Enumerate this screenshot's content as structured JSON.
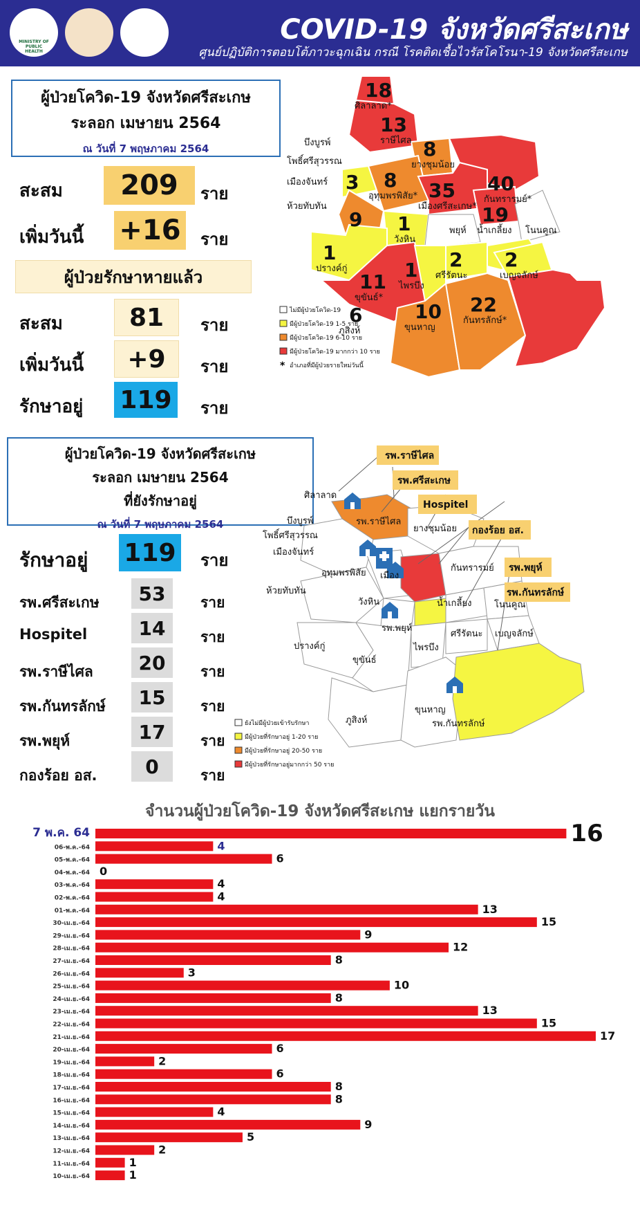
{
  "header": {
    "title": "COVID-19 จังหวัดศรีสะเกษ",
    "subtitle": "ศูนย์ปฏิบัติการตอบโต้ภาวะฉุกเฉิน กรณี โรคติดเชื้อไวรัสโคโรนา-19 จังหวัดศรีสะเกษ",
    "logos": [
      "ministry-of-public-health-logo",
      "provincial-seal-logo",
      "provincial-emblem-logo"
    ],
    "logo_text": "MINISTRY OF PUBLIC HEALTH",
    "bg_color": "#2b2d92"
  },
  "summary": {
    "box_line1": "ผู้ป่วยโควิด-19 จังหวัดศรีสะเกษ",
    "box_line2": "ระลอก เมษายน 2564",
    "box_date": "ณ วันที่ 7 พฤษภาคม 2564",
    "cumulative_label": "สะสม",
    "cumulative_value": "209",
    "new_label": "เพิ่มวันนี้",
    "new_value": "+16",
    "unit": "ราย",
    "recovered_title": "ผู้ป่วยรักษาหายแล้ว",
    "recovered_cum_label": "สะสม",
    "recovered_cum_value": "81",
    "recovered_new_label": "เพิ่มวันนี้",
    "recovered_new_value": "+9",
    "treating_label": "รักษาอยู่",
    "treating_value": "119"
  },
  "district_map": {
    "districts": [
      {
        "name": "ศิลาลาด*",
        "cases": "18"
      },
      {
        "name": "ราษีไศล",
        "cases": "13"
      },
      {
        "name": "ยางชุมน้อย",
        "cases": "8"
      },
      {
        "name": "เมืองจันทร์",
        "cases": "3"
      },
      {
        "name": "อุทุมพรพิสัย*",
        "cases": "8"
      },
      {
        "name": "เมืองศรีสะเกษ*",
        "cases": "35"
      },
      {
        "name": "กันทรารมย์*",
        "cases": "40"
      },
      {
        "name": "ห้วยทับทัน",
        "cases": "9"
      },
      {
        "name": "วังหิน",
        "cases": "1"
      },
      {
        "name": "น้ำเกลี้ยง",
        "cases": "19"
      },
      {
        "name": "ปรางค์กู่",
        "cases": "1"
      },
      {
        "name": "ขุขันธ์*",
        "cases": "11"
      },
      {
        "name": "ไพรบึง",
        "cases": "1"
      },
      {
        "name": "ศรีรัตนะ",
        "cases": "2"
      },
      {
        "name": "เบญจลักษ์",
        "cases": "2"
      },
      {
        "name": "ขุนหาญ",
        "cases": "10"
      },
      {
        "name": "กันทรลักษ์*",
        "cases": "22"
      },
      {
        "name": "ภูสิงห์",
        "cases": "6"
      }
    ],
    "no_case_districts": [
      "บึงบูรพ์",
      "โพธิ์ศรีสุวรรณ",
      "พยุห์",
      "โนนคูณ"
    ],
    "legend": [
      {
        "text": "ไม่มีผู้ป่วยโควิด-19",
        "color": "#ffffff"
      },
      {
        "text": "มีผู้ป่วยโควิด-19  1-5 ราย",
        "color": "#f5f542"
      },
      {
        "text": "มีผู้ป่วยโควิด-19  6-10 ราย",
        "color": "#ee8a2e"
      },
      {
        "text": "มีผู้ป่วยโควิด-19  มากกว่า 10 ราย",
        "color": "#e83a3a"
      },
      {
        "text": "อำเภอที่มีผู้ป่วยรายใหม่วันนี้",
        "color": "*"
      }
    ]
  },
  "treatment": {
    "box_line1": "ผู้ป่วยโควิด-19 จังหวัดศรีสะเกษ",
    "box_line2": "ระลอก เมษายน 2564",
    "box_line3": "ที่ยังรักษาอยู่",
    "box_date": "ณ วันที่ 7 พฤษภาคม 2564",
    "treating_label": "รักษาอยู่",
    "treating_value": "119",
    "unit": "ราย",
    "hospitals": [
      {
        "name": "รพ.ศรีสะเกษ",
        "value": "53"
      },
      {
        "name": "Hospitel",
        "value": "14"
      },
      {
        "name": "รพ.ราษีไศล",
        "value": "20"
      },
      {
        "name": "รพ.กันทรลักษ์",
        "value": "15"
      },
      {
        "name": "รพ.พยุห์",
        "value": "17"
      },
      {
        "name": "กองร้อย อส.",
        "value": "0"
      }
    ]
  },
  "hospital_map": {
    "callouts": [
      "รพ.ราษีไศล",
      "รพ.ศรีสะเกษ",
      "Hospitel",
      "กองร้อย อส.",
      "รพ.พยุห์",
      "รพ.กันทรลักษ์"
    ],
    "district_labels": [
      "ศิลาลาด",
      "บึงบูรพ์",
      "โพธิ์ศรีสุวรรณ",
      "เมืองจันทร์",
      "อุทุมพรพิสัย",
      "ห้วยทับทัน",
      "วังหิน",
      "ยางชุมน้อย",
      "กันทรารมย์",
      "น้ำเกลี้ยง",
      "โนนคูณ",
      "ปรางค์กู่",
      "ขุขันธ์",
      "ไพรบึง",
      "ศรีรัตนะ",
      "เบญจลักษ์",
      "ภูสิงห์",
      "ขุนหาญ",
      "รพ.ราษีไศล",
      "เมือง",
      "รพ.พยุห์",
      "รพ.กันทรลักษ์"
    ],
    "legend": [
      {
        "text": "ยังไม่มีผู้ป่วยเข้ารับรักษา",
        "color": "#ffffff"
      },
      {
        "text": "มีผู้ป่วยที่รักษาอยู่ 1-20 ราย",
        "color": "#f5f542"
      },
      {
        "text": "มีผู้ป่วยที่รักษาอยู่ 20-50 ราย",
        "color": "#ee8a2e"
      },
      {
        "text": "มีผู้ป่วยที่รักษาอยู่มากกว่า 50 ราย",
        "color": "#e83a3a"
      }
    ]
  },
  "chart_data": {
    "type": "bar",
    "orientation": "horizontal",
    "title": "จำนวนผู้ป่วยโควิด-19  จังหวัดศรีสะเกษ แยกรายวัน",
    "categories": [
      "7 พ.ค. 64",
      "06-พ.ค.-64",
      "05-พ.ค.-64",
      "04-พ.ค.-64",
      "03-พ.ค.-64",
      "02-พ.ค.-64",
      "01-พ.ค.-64",
      "30-เม.ย.-64",
      "29-เม.ย.-64",
      "28-เม.ย.-64",
      "27-เม.ย.-64",
      "26-เม.ย.-64",
      "25-เม.ย.-64",
      "24-เม.ย.-64",
      "23-เม.ย.-64",
      "22-เม.ย.-64",
      "21-เม.ย.-64",
      "20-เม.ย.-64",
      "19-เม.ย.-64",
      "18-เม.ย.-64",
      "17-เม.ย.-64",
      "16-เม.ย.-64",
      "15-เม.ย.-64",
      "14-เม.ย.-64",
      "13-เม.ย.-64",
      "12-เม.ย.-64",
      "11-เม.ย.-64",
      "10-เม.ย.-64"
    ],
    "values": [
      16,
      4,
      6,
      0,
      4,
      4,
      13,
      15,
      9,
      12,
      8,
      3,
      10,
      8,
      13,
      15,
      17,
      6,
      2,
      6,
      8,
      8,
      4,
      9,
      5,
      2,
      1,
      1
    ],
    "xlim": [
      0,
      17
    ],
    "bar_color": "#e8141c",
    "highlight_color": "#2b2d92"
  }
}
